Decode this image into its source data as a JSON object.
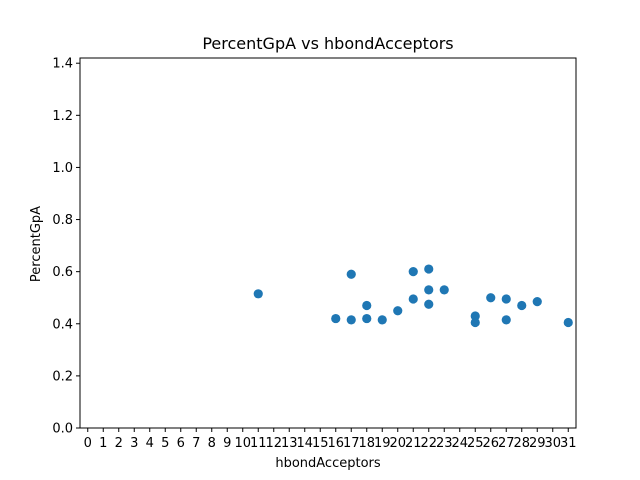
{
  "chart_data": {
    "type": "scatter",
    "title": "PercentGpA vs hbondAcceptors",
    "xlabel": "hbondAcceptors",
    "ylabel": "PercentGpA",
    "x_ticks": [
      "0",
      "1",
      "2",
      "3",
      "4",
      "5",
      "6",
      "7",
      "8",
      "9",
      "10",
      "11",
      "12",
      "13",
      "14",
      "15",
      "16",
      "17",
      "18",
      "19",
      "20",
      "21",
      "22",
      "23",
      "24",
      "25",
      "26",
      "27",
      "28",
      "29",
      "30",
      "31"
    ],
    "y_ticks": [
      "0.0",
      "0.2",
      "0.4",
      "0.6",
      "0.8",
      "1.0",
      "1.2",
      "1.4"
    ],
    "xlim": [
      -0.5,
      31.5
    ],
    "ylim": [
      0.0,
      1.42
    ],
    "marker_color": "#1f77b4",
    "grid": false,
    "points": [
      {
        "x": 11,
        "y": 0.515
      },
      {
        "x": 16,
        "y": 0.42
      },
      {
        "x": 17,
        "y": 0.59
      },
      {
        "x": 17,
        "y": 0.415
      },
      {
        "x": 18,
        "y": 0.47
      },
      {
        "x": 18,
        "y": 0.42
      },
      {
        "x": 19,
        "y": 0.415
      },
      {
        "x": 20,
        "y": 0.45
      },
      {
        "x": 21,
        "y": 0.6
      },
      {
        "x": 21,
        "y": 0.495
      },
      {
        "x": 22,
        "y": 0.61
      },
      {
        "x": 22,
        "y": 0.53
      },
      {
        "x": 22,
        "y": 0.475
      },
      {
        "x": 23,
        "y": 0.53
      },
      {
        "x": 25,
        "y": 0.43
      },
      {
        "x": 25,
        "y": 0.405
      },
      {
        "x": 26,
        "y": 0.5
      },
      {
        "x": 27,
        "y": 0.495
      },
      {
        "x": 27,
        "y": 0.415
      },
      {
        "x": 28,
        "y": 0.47
      },
      {
        "x": 29,
        "y": 0.485
      },
      {
        "x": 31,
        "y": 0.405
      }
    ]
  }
}
